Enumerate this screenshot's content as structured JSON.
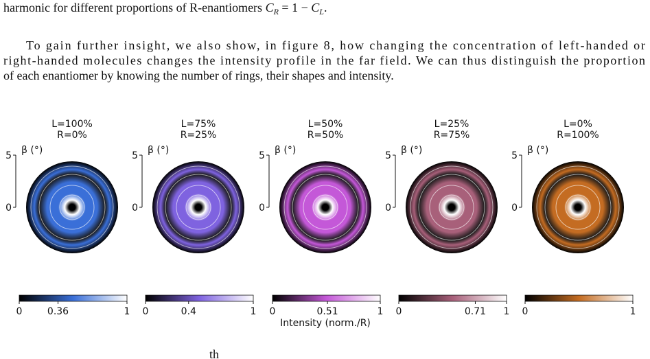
{
  "text": {
    "line0": [
      "harmonic for different proportions of R-enantiomers ",
      "C",
      "R",
      " = 1 − ",
      "C",
      "L",
      "."
    ],
    "paragraph": [
      "To gain further insight, we also show, in figure 8, how changing the concentration of left-handed or",
      "right-handed molecules changes the intensity profile in the far field. We can thus distinguish the proportion",
      "of each enantiomer by knowing the number of rings, their shapes and intensity."
    ],
    "footer_fragment": "th"
  },
  "figure": {
    "axis_label": "β (°)",
    "ylim": [
      0,
      5
    ],
    "yticks": [
      0,
      5
    ],
    "colorbar_label": "Intensity (norm./R)",
    "colorbar_lim": [
      0,
      1
    ],
    "panels": [
      {
        "title": [
          "L=100%",
          "R=0%"
        ],
        "colormap": [
          "#000000",
          "#3a6fd8",
          "#ffffff"
        ],
        "cbticks": [
          0,
          0.36,
          1
        ]
      },
      {
        "title": [
          "L=75%",
          "R=25%"
        ],
        "colormap": [
          "#000000",
          "#7f63e0",
          "#ffffff"
        ],
        "cbticks": [
          0,
          0.4,
          1
        ]
      },
      {
        "title": [
          "L=50%",
          "R=50%"
        ],
        "colormap": [
          "#000000",
          "#c458d8",
          "#ffffff"
        ],
        "cbticks": [
          0,
          0.51,
          1
        ]
      },
      {
        "title": [
          "L=25%",
          "R=75%"
        ],
        "colormap": [
          "#000000",
          "#a8607a",
          "#ffffff"
        ],
        "cbticks": [
          0,
          0.71,
          1
        ]
      },
      {
        "title": [
          "L=0%",
          "R=100%"
        ],
        "colormap": [
          "#000000",
          "#c46c22",
          "#ffffff"
        ],
        "cbticks": [
          0,
          1
        ]
      }
    ]
  }
}
